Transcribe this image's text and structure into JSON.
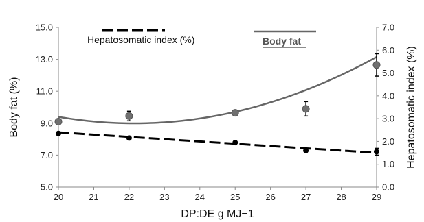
{
  "chart_data": {
    "type": "scatter",
    "x_axis": {
      "label": "DP:DE g MJ−1",
      "range": [
        20,
        29
      ],
      "ticks": [
        "20",
        "21",
        "22",
        "23",
        "24",
        "25",
        "26",
        "27",
        "28",
        "29"
      ]
    },
    "y_left": {
      "label": "Body fat (%)",
      "range": [
        5.0,
        15.0
      ],
      "ticks": [
        "5.0",
        "7.0",
        "9.0",
        "11.0",
        "13.0",
        "15.0"
      ]
    },
    "y_right": {
      "label": "Hepatosomatic index (%)",
      "range": [
        0.0,
        7.0
      ],
      "ticks": [
        "0.0",
        "1.0",
        "2.0",
        "3.0",
        "4.0",
        "5.0",
        "6.0",
        "7.0"
      ]
    },
    "series": [
      {
        "name": "Body fat",
        "axis": "left",
        "color": "#666666",
        "marker": "circle-gray",
        "x": [
          20,
          22,
          25,
          27,
          29
        ],
        "y": [
          9.1,
          9.45,
          9.65,
          9.9,
          12.65
        ],
        "error": [
          0.0,
          0.3,
          0.0,
          0.45,
          0.7
        ],
        "trendline": {
          "kind": "polynomial-2",
          "coefficients": [
            0.0885,
            -3.92,
            52.4
          ],
          "style": "solid"
        }
      },
      {
        "name": "Hepatosomatic index (%)",
        "axis": "right",
        "color": "#000000",
        "marker": "circle-black",
        "x": [
          20,
          22,
          25,
          27,
          29
        ],
        "y": [
          2.35,
          2.15,
          1.95,
          1.6,
          1.55
        ],
        "error": [
          0.0,
          0.0,
          0.0,
          0.0,
          0.15
        ],
        "trendline": {
          "kind": "linear",
          "points": [
            [
              20,
              2.4
            ],
            [
              29,
              1.5
            ]
          ],
          "style": "dashed"
        }
      }
    ],
    "legend": {
      "placement": "top",
      "entries": [
        {
          "label": "Hepatosomatic index (%)",
          "style": "dashed",
          "color": "#000000"
        },
        {
          "label": "Body fat",
          "style": "solid",
          "color": "#666666"
        }
      ]
    },
    "grid": false
  }
}
